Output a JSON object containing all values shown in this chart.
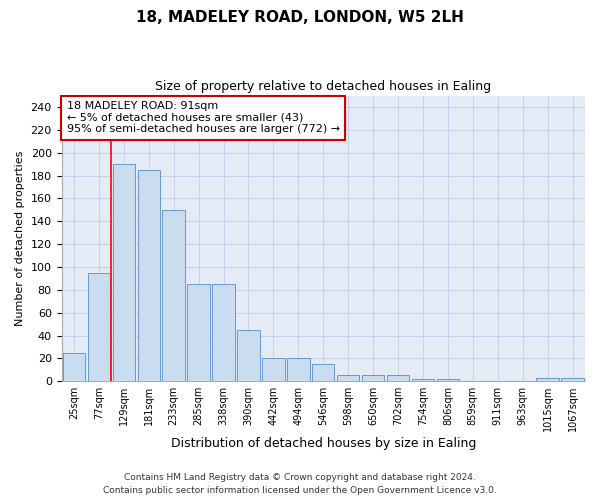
{
  "title1": "18, MADELEY ROAD, LONDON, W5 2LH",
  "title2": "Size of property relative to detached houses in Ealing",
  "xlabel": "Distribution of detached houses by size in Ealing",
  "ylabel": "Number of detached properties",
  "categories": [
    "25sqm",
    "77sqm",
    "129sqm",
    "181sqm",
    "233sqm",
    "285sqm",
    "338sqm",
    "390sqm",
    "442sqm",
    "494sqm",
    "546sqm",
    "598sqm",
    "650sqm",
    "702sqm",
    "754sqm",
    "806sqm",
    "859sqm",
    "911sqm",
    "963sqm",
    "1015sqm",
    "1067sqm"
  ],
  "values": [
    25,
    95,
    190,
    185,
    150,
    85,
    85,
    45,
    20,
    20,
    15,
    5,
    5,
    5,
    2,
    2,
    0,
    0,
    0,
    3,
    3
  ],
  "bar_color": "#c9dcf0",
  "bar_edge_color": "#6699cc",
  "grid_color": "#c8d0e8",
  "background_color": "#e4eaf6",
  "red_line_x": 1.5,
  "annotation_text": "18 MADELEY ROAD: 91sqm\n← 5% of detached houses are smaller (43)\n95% of semi-detached houses are larger (772) →",
  "annotation_box_color": "#ffffff",
  "annotation_box_edge": "#cc0000",
  "ylim": [
    0,
    250
  ],
  "yticks": [
    0,
    20,
    40,
    60,
    80,
    100,
    120,
    140,
    160,
    180,
    200,
    220,
    240
  ],
  "footnote1": "Contains HM Land Registry data © Crown copyright and database right 2024.",
  "footnote2": "Contains public sector information licensed under the Open Government Licence v3.0."
}
